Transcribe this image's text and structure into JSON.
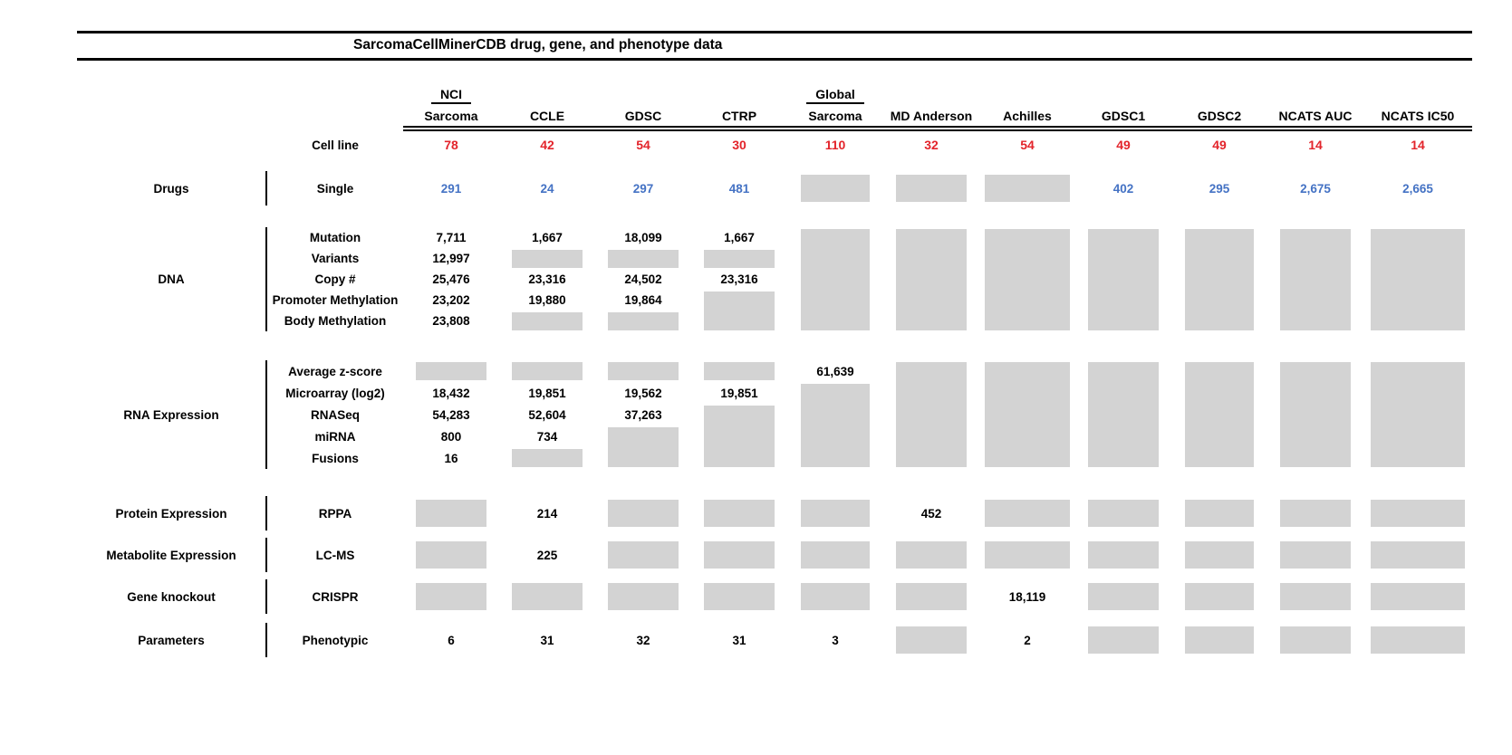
{
  "title": "SarcomaCellMinerCDB drug, gene, and phenotype data",
  "colors": {
    "text": "#000000",
    "cell_line_count": "#e3242b",
    "drug_count": "#4472c4",
    "missing_box": "#d3d3d3"
  },
  "chart_data": {
    "type": "table",
    "title": "SarcomaCellMinerCDB drug, gene, and phenotype data",
    "missing_data_marker": "gray box = data not available",
    "cell_line_label": "Cell line",
    "columns": [
      {
        "top": "NCI",
        "name": "Sarcoma",
        "top_underline": true,
        "cell_lines": "78"
      },
      {
        "top": "",
        "name": "CCLE",
        "cell_lines": "42"
      },
      {
        "top": "",
        "name": "GDSC",
        "cell_lines": "54"
      },
      {
        "top": "",
        "name": "CTRP",
        "cell_lines": "30"
      },
      {
        "top": "Global",
        "name": "Sarcoma",
        "top_underline": true,
        "cell_lines": "110"
      },
      {
        "top": "",
        "name": "MD Anderson",
        "cell_lines": "32"
      },
      {
        "top": "",
        "name": "Achilles",
        "cell_lines": "54"
      },
      {
        "top": "",
        "name": "GDSC1",
        "cell_lines": "49"
      },
      {
        "top": "",
        "name": "GDSC2",
        "cell_lines": "49"
      },
      {
        "top": "",
        "name": "NCATS AUC",
        "cell_lines": "14"
      },
      {
        "top": "",
        "name": "NCATS IC50",
        "cell_lines": "14"
      }
    ],
    "blocks": [
      {
        "category": "Drugs",
        "rows": [
          "Single"
        ],
        "value_color": "#4472c4",
        "values": [
          [
            "291",
            "24",
            "297",
            "481",
            null,
            null,
            null,
            "402",
            "295",
            "2,675",
            "2,665"
          ]
        ]
      },
      {
        "category": "DNA",
        "rows": [
          "Mutation",
          "Variants",
          "Copy #",
          "Promoter Methylation",
          "Body Methylation"
        ],
        "value_color": "#000000",
        "values": [
          [
            "7,711",
            "1,667",
            "18,099",
            "1,667",
            null,
            null,
            null,
            null,
            null,
            null,
            null
          ],
          [
            "12,997",
            null,
            null,
            null,
            null,
            null,
            null,
            null,
            null,
            null,
            null
          ],
          [
            "25,476",
            "23,316",
            "24,502",
            "23,316",
            null,
            null,
            null,
            null,
            null,
            null,
            null
          ],
          [
            "23,202",
            "19,880",
            "19,864",
            null,
            null,
            null,
            null,
            null,
            null,
            null,
            null
          ],
          [
            "23,808",
            null,
            null,
            null,
            null,
            null,
            null,
            null,
            null,
            null,
            null
          ]
        ]
      },
      {
        "category": "RNA Expression",
        "rows": [
          "Average z-score",
          "Microarray (log2)",
          "RNASeq",
          "miRNA",
          "Fusions"
        ],
        "value_color": "#000000",
        "values": [
          [
            null,
            null,
            null,
            null,
            "61,639",
            null,
            null,
            null,
            null,
            null,
            null
          ],
          [
            "18,432",
            "19,851",
            "19,562",
            "19,851",
            null,
            null,
            null,
            null,
            null,
            null,
            null
          ],
          [
            "54,283",
            "52,604",
            "37,263",
            null,
            null,
            null,
            null,
            null,
            null,
            null,
            null
          ],
          [
            "800",
            "734",
            null,
            null,
            null,
            null,
            null,
            null,
            null,
            null,
            null
          ],
          [
            "16",
            null,
            null,
            null,
            null,
            null,
            null,
            null,
            null,
            null,
            null
          ]
        ]
      },
      {
        "category": "Protein Expression",
        "rows": [
          "RPPA"
        ],
        "value_color": "#000000",
        "values": [
          [
            null,
            "214",
            null,
            null,
            null,
            "452",
            null,
            null,
            null,
            null,
            null
          ]
        ]
      },
      {
        "category": "Metabolite Expression",
        "rows": [
          "LC-MS"
        ],
        "value_color": "#000000",
        "values": [
          [
            null,
            "225",
            null,
            null,
            null,
            null,
            null,
            null,
            null,
            null,
            null
          ]
        ]
      },
      {
        "category": "Gene knockout",
        "rows": [
          "CRISPR"
        ],
        "value_color": "#000000",
        "values": [
          [
            null,
            null,
            null,
            null,
            null,
            null,
            "18,119",
            null,
            null,
            null,
            null
          ]
        ]
      },
      {
        "category": "Parameters",
        "rows": [
          "Phenotypic"
        ],
        "value_color": "#000000",
        "values": [
          [
            "6",
            "31",
            "32",
            "31",
            "3",
            null,
            "2",
            null,
            null,
            null,
            null
          ]
        ]
      }
    ]
  }
}
